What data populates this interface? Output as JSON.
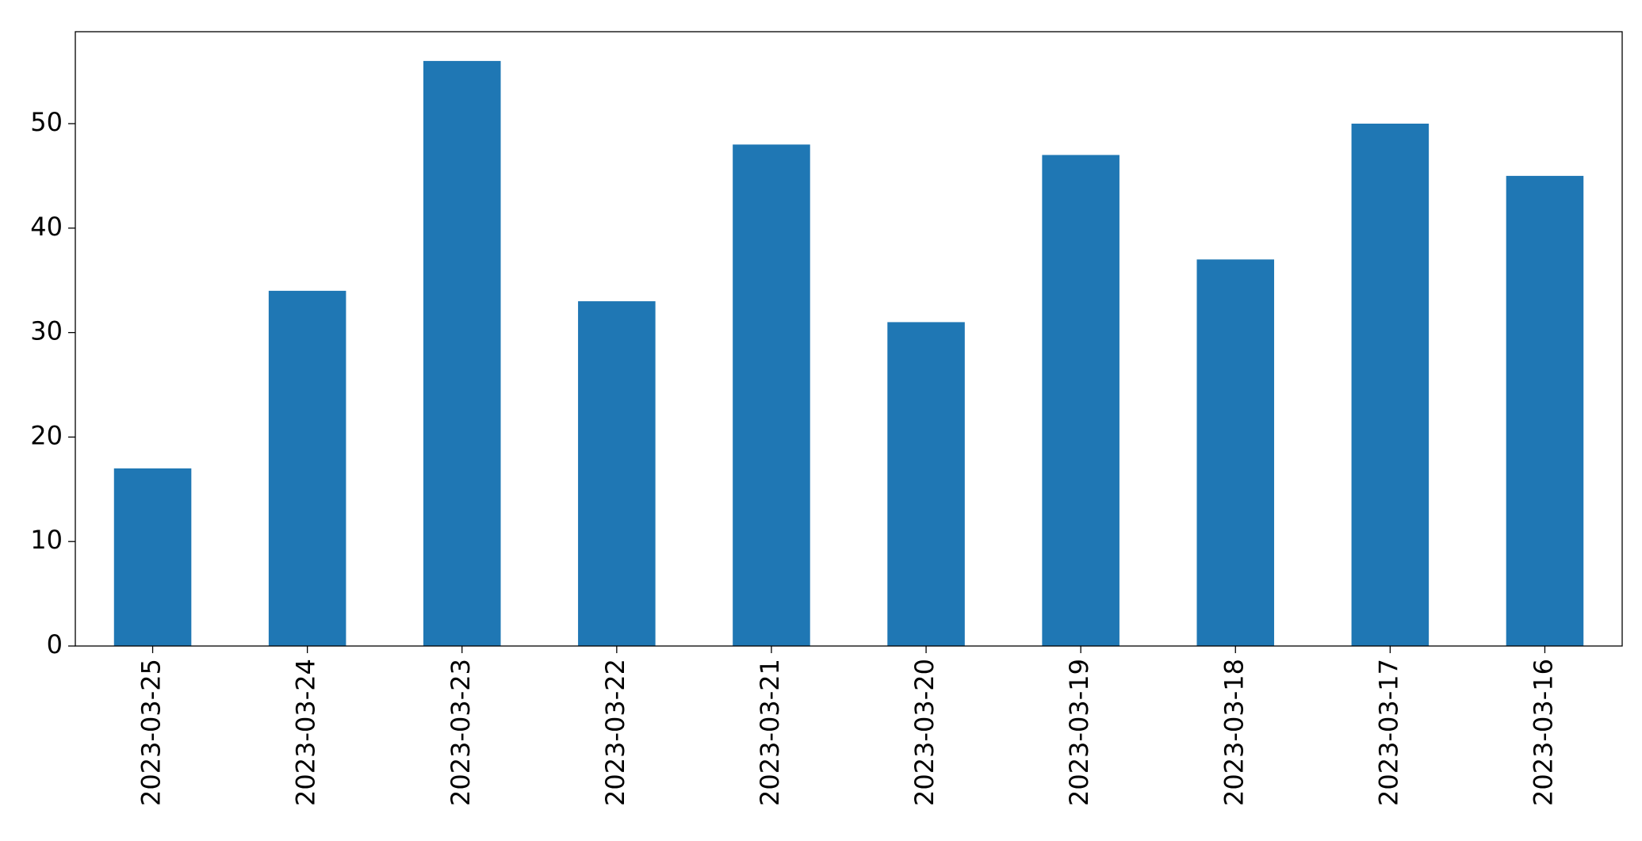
{
  "chart_data": {
    "type": "bar",
    "categories": [
      "2023-03-25",
      "2023-03-24",
      "2023-03-23",
      "2023-03-22",
      "2023-03-21",
      "2023-03-20",
      "2023-03-19",
      "2023-03-18",
      "2023-03-17",
      "2023-03-16"
    ],
    "values": [
      17,
      34,
      56,
      33,
      48,
      31,
      47,
      37,
      50,
      45
    ],
    "color": "#1f77b4",
    "ylim": [
      0,
      58.8
    ],
    "yticks": [
      0,
      10,
      20,
      30,
      40,
      50
    ],
    "grid": false
  }
}
